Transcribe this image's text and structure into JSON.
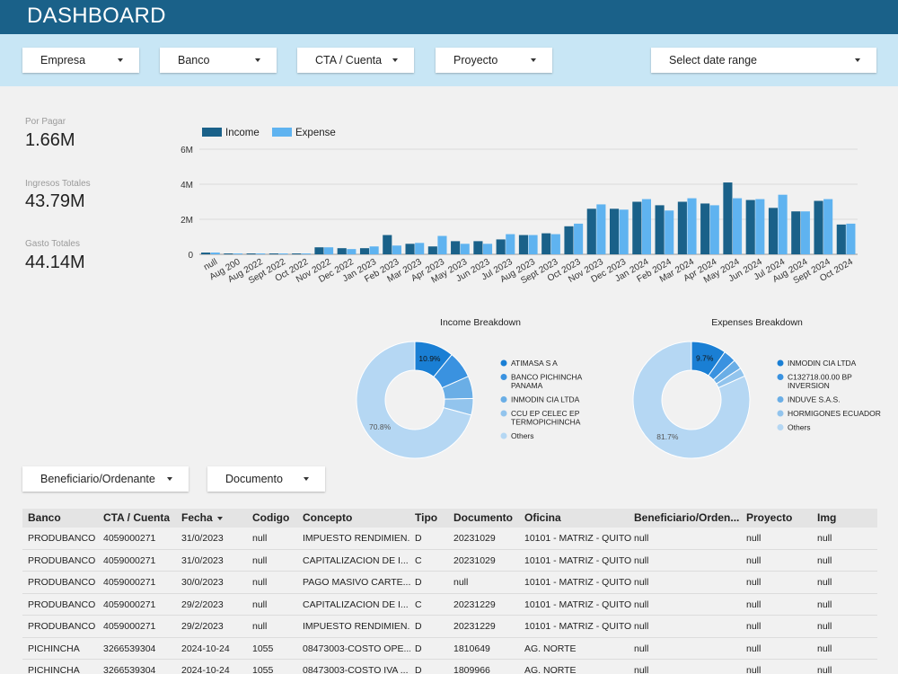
{
  "header": {
    "title": "DASHBOARD"
  },
  "filters": [
    {
      "label": "Empresa"
    },
    {
      "label": "Banco"
    },
    {
      "label": "CTA / Cuenta"
    },
    {
      "label": "Proyecto"
    },
    {
      "label": "Select date range"
    }
  ],
  "table_filters": [
    {
      "label": "Beneficiario/Ordenante"
    },
    {
      "label": "Documento"
    }
  ],
  "kpis": [
    {
      "label": "Por Pagar",
      "value": "1.66M"
    },
    {
      "label": "Ingresos Totales",
      "value": "43.79M"
    },
    {
      "label": "Gasto Totales",
      "value": "44.14M"
    }
  ],
  "colors": {
    "header": "#1a6189",
    "filterbar": "#c8e6f5",
    "income": "#1a6189",
    "expense": "#5fb3f0"
  },
  "chart_data": [
    {
      "type": "bar",
      "categories": [
        "null",
        "Aug 200",
        "Aug 2022",
        "Sept 2022",
        "Oct 2022",
        "Nov 2022",
        "Dec 2022",
        "Jan 2023",
        "Feb 2023",
        "Mar 2023",
        "Apr 2023",
        "May 2023",
        "Jun 2023",
        "Jul 2023",
        "Aug 2023",
        "Sept 2023",
        "Oct 2023",
        "Nov 2023",
        "Dec 2023",
        "Jan 2024",
        "Feb 2024",
        "Mar 2024",
        "Apr 2024",
        "May 2024",
        "Jun 2024",
        "Jul 2024",
        "Aug 2024",
        "Sept 2024",
        "Oct 2024"
      ],
      "series": [
        {
          "name": "Income",
          "values": [
            0.1,
            0.05,
            0.05,
            0.05,
            0.05,
            0.4,
            0.35,
            0.35,
            1.1,
            0.6,
            0.45,
            0.75,
            0.75,
            0.85,
            1.1,
            1.2,
            1.6,
            2.6,
            2.6,
            3.0,
            2.8,
            3.0,
            2.9,
            4.1,
            3.1,
            2.65,
            2.45,
            3.05,
            1.7
          ]
        },
        {
          "name": "Expense",
          "values": [
            0.1,
            0.05,
            0.05,
            0.05,
            0.05,
            0.4,
            0.3,
            0.45,
            0.5,
            0.65,
            1.05,
            0.6,
            0.6,
            1.15,
            1.1,
            1.15,
            1.75,
            2.85,
            2.55,
            3.15,
            2.5,
            3.2,
            2.8,
            3.2,
            3.15,
            3.4,
            2.45,
            3.15,
            1.75
          ]
        }
      ],
      "ylim": [
        0,
        6
      ],
      "yticks": [
        "0",
        "2M",
        "4M",
        "6M"
      ],
      "grid": true,
      "legend": "top-left"
    },
    {
      "type": "pie",
      "title": "Income Breakdown",
      "labels": [
        "ATIMASA S A",
        "BANCO PICHINCHA PANAMA",
        "INMODIN CIA LTDA",
        "CCU EP CELEC EP TERMOPICHINCHA",
        "Others"
      ],
      "values": [
        10.9,
        7.5,
        6.2,
        4.6,
        70.8
      ],
      "colors": [
        "#1a7fd4",
        "#3a92e0",
        "#6aaee6",
        "#92c4ed",
        "#b5d7f3"
      ],
      "slice_labels": [
        "10.9%",
        "",
        "",
        "",
        "70.8%"
      ]
    },
    {
      "type": "pie",
      "title": "Expenses Breakdown",
      "labels": [
        "INMODIN CIA LTDA",
        "C132718.00.00 BP INVERSION",
        "INDUVE S.A.S.",
        "HORMIGONES ECUADOR",
        "Others"
      ],
      "values": [
        9.7,
        3.5,
        2.7,
        2.4,
        81.7
      ],
      "colors": [
        "#1a7fd4",
        "#3a92e0",
        "#6aaee6",
        "#92c4ed",
        "#b5d7f3"
      ],
      "slice_labels": [
        "9.7%",
        "",
        "",
        "",
        "81.7%"
      ]
    }
  ],
  "table": {
    "columns": [
      "Banco",
      "CTA / Cuenta",
      "Fecha",
      "Codigo",
      "Concepto",
      "Tipo",
      "Documento",
      "Oficina",
      "Beneficiario/Orden...",
      "Proyecto",
      "Img"
    ],
    "rows": [
      [
        "PRODUBANCO",
        "4059000271",
        "31/0/2023",
        "null",
        "IMPUESTO RENDIMIEN...",
        "D",
        "20231029",
        "10101 - MATRIZ - QUITO",
        "null",
        "null",
        "null"
      ],
      [
        "PRODUBANCO",
        "4059000271",
        "31/0/2023",
        "null",
        "CAPITALIZACION DE I...",
        "C",
        "20231029",
        "10101 - MATRIZ - QUITO",
        "null",
        "null",
        "null"
      ],
      [
        "PRODUBANCO",
        "4059000271",
        "30/0/2023",
        "null",
        "PAGO MASIVO CARTE...",
        "D",
        "null",
        "10101 - MATRIZ - QUITO",
        "null",
        "null",
        "null"
      ],
      [
        "PRODUBANCO",
        "4059000271",
        "29/2/2023",
        "null",
        "CAPITALIZACION DE I...",
        "C",
        "20231229",
        "10101 - MATRIZ - QUITO",
        "null",
        "null",
        "null"
      ],
      [
        "PRODUBANCO",
        "4059000271",
        "29/2/2023",
        "null",
        "IMPUESTO RENDIMIEN...",
        "D",
        "20231229",
        "10101 - MATRIZ - QUITO",
        "null",
        "null",
        "null"
      ],
      [
        "PICHINCHA",
        "3266539304",
        "2024-10-24",
        "1055",
        "08473003-COSTO OPE...",
        "D",
        "1810649",
        "AG. NORTE",
        "null",
        "null",
        "null"
      ],
      [
        "PICHINCHA",
        "3266539304",
        "2024-10-24",
        "1055",
        "08473003-COSTO IVA ...",
        "D",
        "1809966",
        "AG. NORTE",
        "null",
        "null",
        "null"
      ]
    ]
  }
}
